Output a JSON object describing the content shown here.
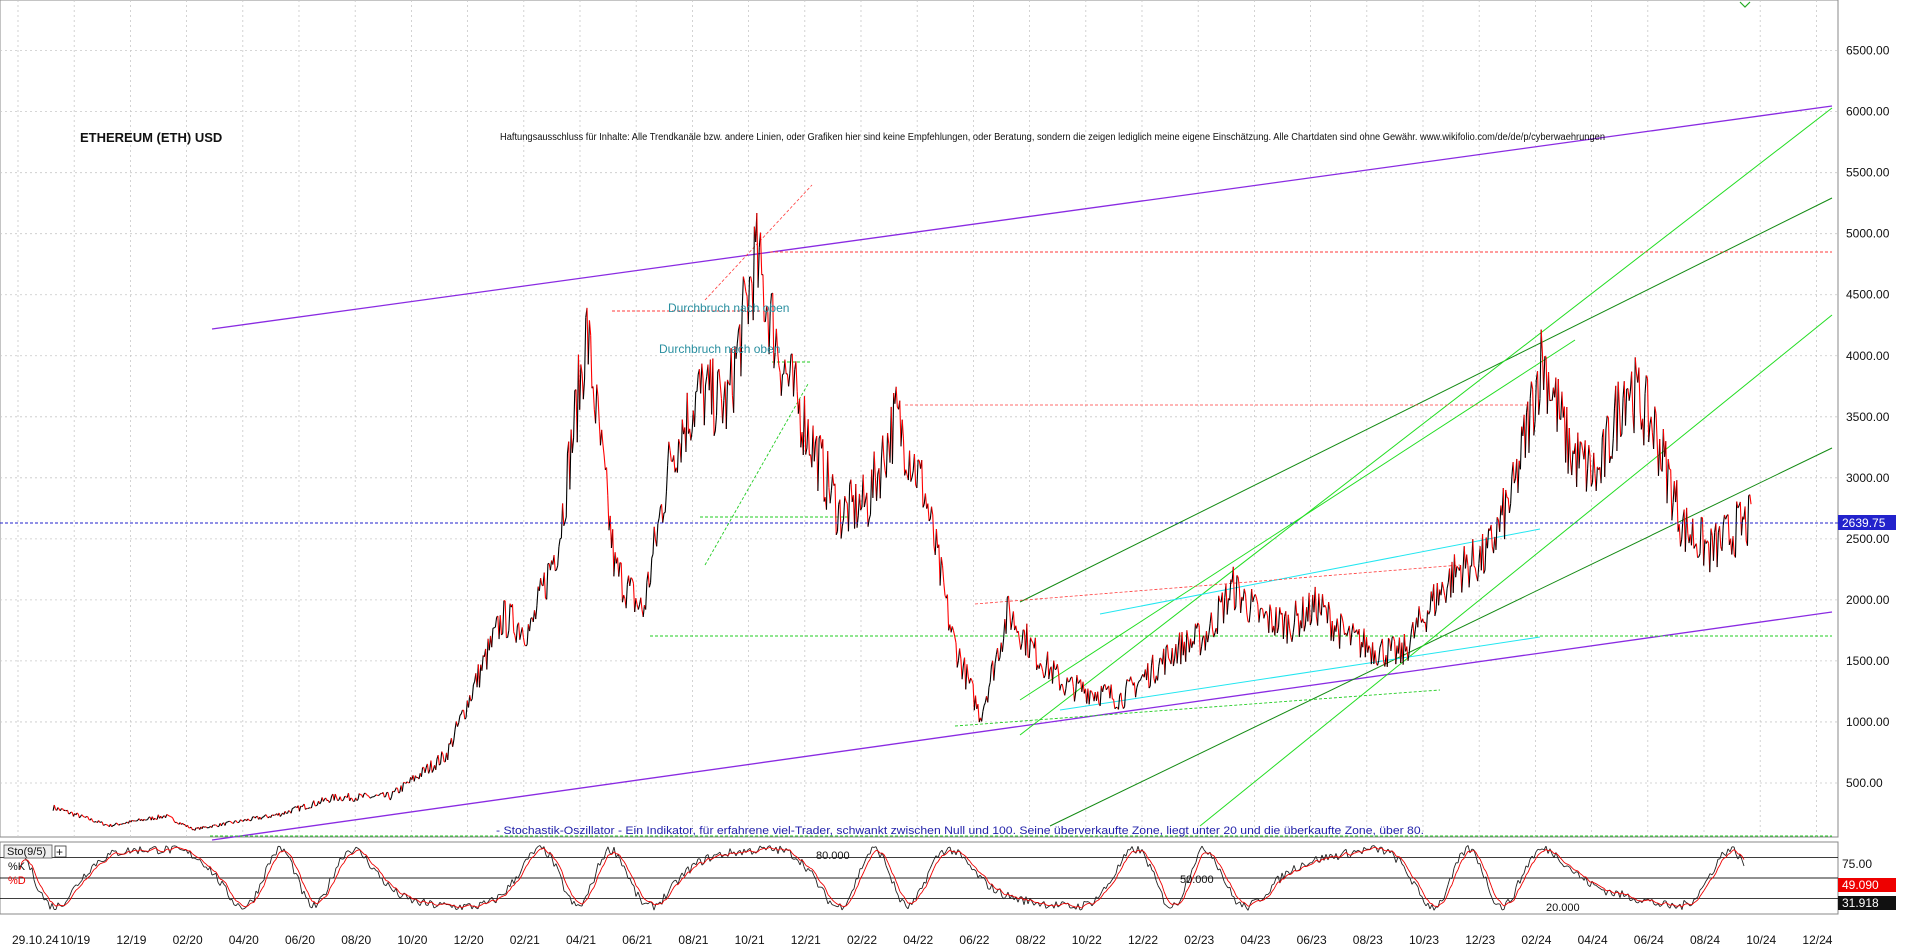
{
  "chart_data": [
    {
      "type": "line",
      "title": "ETHEREUM (ETH) USD",
      "disclaimer": "Haftungsausschluss für Inhalte: Alle Trendkanäle bzw. andere Linien, oder Grafiken hier sind keine Empfehlungen, oder Beratung, sondern die zeigen lediglich meine eigene Einschätzung. Alle Chartdaten sind ohne Gewähr. www.wikifolio.com/de/de/p/cyberwaehrungen",
      "x_tick_labels": [
        "29.10.24",
        "10/19",
        "12/19",
        "02/20",
        "04/20",
        "06/20",
        "08/20",
        "10/20",
        "12/20",
        "02/21",
        "04/21",
        "06/21",
        "08/21",
        "10/21",
        "12/21",
        "02/22",
        "04/22",
        "06/22",
        "08/22",
        "10/22",
        "12/22",
        "02/23",
        "04/23",
        "06/23",
        "08/23",
        "10/23",
        "12/23",
        "02/24",
        "04/24",
        "06/24",
        "08/24",
        "10/24",
        "12/24"
      ],
      "y_ticks": [
        500,
        1000,
        1500,
        2000,
        2500,
        3000,
        3500,
        4000,
        4500,
        5000,
        5500,
        6000,
        6500
      ],
      "ylim": [
        0,
        6900
      ],
      "grid": true,
      "current_price": 2639.75,
      "current_price_label": "2639.75",
      "annotations": [
        "Durchbruch nach oben",
        "Durchbruch nach oben"
      ],
      "series": [
        {
          "values": [
            {
              "x": "2019-10",
              "y": 300
            },
            {
              "x": "2019-12",
              "y": 150
            },
            {
              "x": "2020-02",
              "y": 230
            },
            {
              "x": "2020-03",
              "y": 120
            },
            {
              "x": "2020-06",
              "y": 240
            },
            {
              "x": "2020-08",
              "y": 380
            },
            {
              "x": "2020-10",
              "y": 390
            },
            {
              "x": "2020-12",
              "y": 730
            },
            {
              "x": "2021-01",
              "y": 1300
            },
            {
              "x": "2021-02",
              "y": 1850
            },
            {
              "x": "2021-03",
              "y": 1750
            },
            {
              "x": "2021-04",
              "y": 2500
            },
            {
              "x": "2021-05",
              "y": 4200
            },
            {
              "x": "2021-06",
              "y": 2250
            },
            {
              "x": "2021-07",
              "y": 1900
            },
            {
              "x": "2021-08",
              "y": 3200
            },
            {
              "x": "2021-09",
              "y": 3700
            },
            {
              "x": "2021-10",
              "y": 3600
            },
            {
              "x": "2021-11",
              "y": 4800
            },
            {
              "x": "2021-12",
              "y": 3900
            },
            {
              "x": "2022-01",
              "y": 3300
            },
            {
              "x": "2022-02",
              "y": 2700
            },
            {
              "x": "2022-03",
              "y": 2800
            },
            {
              "x": "2022-04",
              "y": 3500
            },
            {
              "x": "2022-05",
              "y": 2900
            },
            {
              "x": "2022-06",
              "y": 1700
            },
            {
              "x": "2022-07",
              "y": 1050
            },
            {
              "x": "2022-08",
              "y": 1900
            },
            {
              "x": "2022-09",
              "y": 1550
            },
            {
              "x": "2022-10",
              "y": 1300
            },
            {
              "x": "2022-11",
              "y": 1250
            },
            {
              "x": "2022-12",
              "y": 1200
            },
            {
              "x": "2023-01",
              "y": 1400
            },
            {
              "x": "2023-02",
              "y": 1600
            },
            {
              "x": "2023-03",
              "y": 1700
            },
            {
              "x": "2023-04",
              "y": 2100
            },
            {
              "x": "2023-05",
              "y": 1850
            },
            {
              "x": "2023-06",
              "y": 1800
            },
            {
              "x": "2023-07",
              "y": 1950
            },
            {
              "x": "2023-08",
              "y": 1700
            },
            {
              "x": "2023-09",
              "y": 1600
            },
            {
              "x": "2023-10",
              "y": 1550
            },
            {
              "x": "2023-11",
              "y": 1950
            },
            {
              "x": "2023-12",
              "y": 2250
            },
            {
              "x": "2024-01",
              "y": 2350
            },
            {
              "x": "2024-02",
              "y": 2900
            },
            {
              "x": "2024-03",
              "y": 4000
            },
            {
              "x": "2024-04",
              "y": 3200
            },
            {
              "x": "2024-05",
              "y": 3000
            },
            {
              "x": "2024-06",
              "y": 3800
            },
            {
              "x": "2024-07",
              "y": 3400
            },
            {
              "x": "2024-08",
              "y": 2600
            },
            {
              "x": "2024-09",
              "y": 2400
            },
            {
              "x": "2024-10",
              "y": 2600
            },
            {
              "x": "2024-10-29",
              "y": 2640
            }
          ]
        }
      ]
    },
    {
      "type": "line",
      "indicator_label": "Sto(9/5)",
      "stochastic_note": "- Stochastik-Oszillator - Ein Indikator, für erfahrene viel-Trader, schwankt zwischen Null und 100. Seine überverkaufte Zone, liegt unter 20 und die überkaufte Zone, über 80.",
      "series_labels": [
        "%K",
        "%D"
      ],
      "y_ticks": [
        25,
        50,
        75
      ],
      "y_tick_labels": [
        "",
        "",
        "75.00"
      ],
      "level_labels": [
        "80.000",
        "50.000",
        "20.000"
      ],
      "k_value": "49.090",
      "d_value": "31.918",
      "ylim": [
        0,
        100
      ]
    }
  ],
  "colors": {
    "price_up": "#000000",
    "price_down": "#ff0000",
    "channel": "#8a2be2",
    "trend_dark": "#138a13",
    "trend_light": "#22dd22",
    "cyan": "#22e6f0",
    "support": "#22cc22",
    "resistance": "#ff3b3b",
    "current_line": "#2222cc",
    "annotation": "#2a8fa0"
  }
}
